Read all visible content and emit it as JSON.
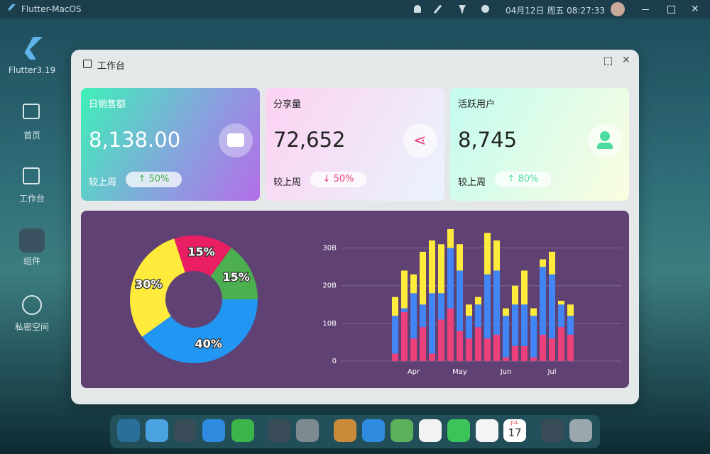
{
  "window": {
    "title": "Flutter-MacOS",
    "datetime": "04月12日 周五 08:27:33"
  },
  "sidebar": {
    "app": "Flutter3.19",
    "items": [
      "首页",
      "工作台",
      "组件",
      "私密空间"
    ]
  },
  "dialog": {
    "title": "工作台"
  },
  "cards": [
    {
      "title": "日销售额",
      "value": "8,138.00",
      "compare": "较上周",
      "change": "50%"
    },
    {
      "title": "分享量",
      "value": "72,652",
      "compare": "较上周",
      "change": "50%"
    },
    {
      "title": "活跃用户",
      "value": "8,745",
      "compare": "较上周",
      "change": "80%"
    }
  ],
  "dock": {
    "calendar_month": "JUL",
    "calendar_day": "17"
  },
  "chart_data": [
    {
      "type": "pie",
      "values": [
        15,
        15,
        40,
        30
      ],
      "value_labels": [
        "15%",
        "15%",
        "40%",
        "30%"
      ],
      "colors": [
        "#e91e63",
        "#4caf50",
        "#2196f3",
        "#ffeb3b"
      ]
    },
    {
      "type": "bar",
      "stacked": true,
      "grid": true,
      "categories": [
        null,
        null,
        "Apr",
        null,
        null,
        null,
        null,
        "May",
        null,
        null,
        null,
        null,
        "Jun",
        null,
        null,
        null,
        null,
        "Jul",
        null,
        null
      ],
      "series": [
        {
          "color": "#ec407a",
          "values": [
            2,
            13,
            6,
            9,
            2,
            11,
            14,
            8,
            6,
            9,
            6,
            7,
            1,
            4,
            4,
            1,
            7,
            6,
            9,
            7
          ]
        },
        {
          "color": "#4285f4",
          "values": [
            10,
            1,
            12,
            6,
            16,
            7,
            16,
            16,
            6,
            6,
            17,
            17,
            11,
            11,
            11,
            11,
            18,
            17,
            6,
            5
          ]
        },
        {
          "color": "#ffeb3b",
          "values": [
            5,
            10,
            5,
            14,
            14,
            13,
            5,
            7,
            3,
            2,
            11,
            8,
            2,
            5,
            9,
            2,
            2,
            6,
            1,
            3
          ]
        }
      ],
      "ylim": [
        0,
        35
      ],
      "yticks": [
        0,
        {
          "value": 10,
          "label": "10B"
        },
        {
          "value": 20,
          "label": "20B"
        },
        {
          "value": 30,
          "label": "30B"
        }
      ]
    }
  ]
}
